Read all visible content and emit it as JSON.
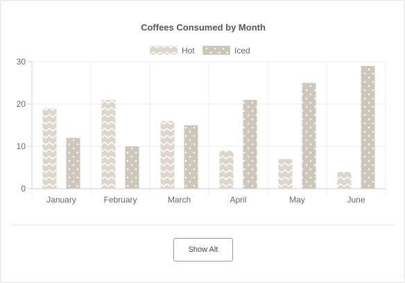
{
  "chart_data": {
    "type": "bar",
    "title": "Coffees Consumed by Month",
    "categories": [
      "January",
      "February",
      "March",
      "April",
      "May",
      "June"
    ],
    "series": [
      {
        "name": "Hot",
        "values": [
          19,
          21,
          16,
          9,
          7,
          4
        ],
        "color": "#dcd6cd",
        "pattern": "zigzag"
      },
      {
        "name": "Iced",
        "values": [
          12,
          10,
          15,
          21,
          25,
          29
        ],
        "color": "#cdc6bb",
        "pattern": "dots"
      }
    ],
    "ylim": [
      0,
      30
    ],
    "yticks": [
      "0",
      "10",
      "20",
      "30"
    ],
    "grid": true,
    "legend_position": "top"
  },
  "controls": {
    "toggle_label": "Show Alt"
  }
}
